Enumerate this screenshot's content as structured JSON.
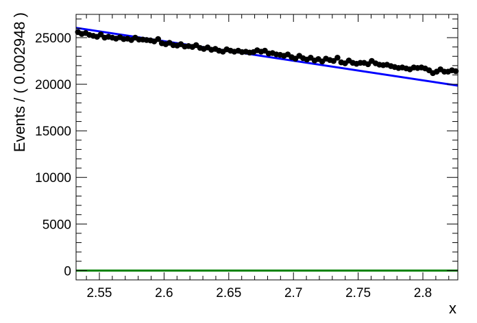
{
  "chart_data": {
    "type": "scatter",
    "title": "",
    "xlabel": "x",
    "ylabel": "Events / ( 0.002948 )",
    "xlim": [
      2.532,
      2.827
    ],
    "ylim": [
      -1000,
      27500
    ],
    "x_ticks": [
      2.55,
      2.6,
      2.65,
      2.7,
      2.75,
      2.8
    ],
    "x_tick_labels": [
      "2.55",
      "2.6",
      "2.65",
      "2.7",
      "2.75",
      "2.8"
    ],
    "y_ticks": [
      0,
      5000,
      10000,
      15000,
      20000,
      25000
    ],
    "y_tick_labels": [
      "0",
      "5000",
      "10000",
      "15000",
      "20000",
      "25000"
    ],
    "grid": false,
    "legend": "none",
    "series": [
      {
        "kind": "points",
        "color": "#000000",
        "x": [
          2.5335,
          2.5364,
          2.5394,
          2.5423,
          2.5453,
          2.5482,
          2.5511,
          2.5541,
          2.557,
          2.56,
          2.5629,
          2.5659,
          2.5688,
          2.5718,
          2.5747,
          2.5777,
          2.5806,
          2.5836,
          2.5865,
          2.5895,
          2.5924,
          2.5954,
          2.5983,
          2.6013,
          2.6042,
          2.6071,
          2.6101,
          2.613,
          2.616,
          2.6189,
          2.6219,
          2.6248,
          2.6278,
          2.6307,
          2.6337,
          2.6366,
          2.6396,
          2.6425,
          2.6455,
          2.6484,
          2.6514,
          2.6543,
          2.6573,
          2.6602,
          2.6632,
          2.6661,
          2.6691,
          2.672,
          2.675,
          2.6779,
          2.6809,
          2.6838,
          2.6868,
          2.6897,
          2.6927,
          2.6956,
          2.6986,
          2.7015,
          2.7045,
          2.7074,
          2.7104,
          2.7133,
          2.7163,
          2.7192,
          2.7222,
          2.7251,
          2.7281,
          2.731,
          2.734,
          2.7369,
          2.7399,
          2.7428,
          2.7458,
          2.7487,
          2.7517,
          2.7546,
          2.7576,
          2.7605,
          2.7635,
          2.7664,
          2.7694,
          2.7723,
          2.7753,
          2.7782,
          2.7812,
          2.7841,
          2.7871,
          2.79,
          2.793,
          2.7959,
          2.7989,
          2.8018,
          2.8048,
          2.8077,
          2.8107,
          2.8136,
          2.8166,
          2.8195,
          2.8225,
          2.8254
        ],
        "y": [
          25600,
          25400,
          25500,
          25300,
          25200,
          25100,
          25350,
          25000,
          25100,
          25000,
          24900,
          25050,
          24850,
          24900,
          24750,
          25000,
          24800,
          24800,
          24750,
          24700,
          24600,
          24850,
          24400,
          24300,
          24450,
          24200,
          24150,
          24300,
          24050,
          24100,
          24000,
          24200,
          23900,
          23800,
          23950,
          23700,
          23800,
          23600,
          23500,
          23750,
          23600,
          23500,
          23600,
          23450,
          23500,
          23400,
          23450,
          23650,
          23500,
          23600,
          23300,
          23350,
          23200,
          23150,
          23050,
          23200,
          22900,
          22750,
          23050,
          22800,
          22650,
          22850,
          22550,
          22700,
          22450,
          22750,
          22600,
          22500,
          22850,
          22350,
          22250,
          22550,
          22300,
          22200,
          22300,
          22300,
          22150,
          22500,
          22250,
          22100,
          22050,
          22100,
          21950,
          21850,
          21750,
          21800,
          21700,
          21600,
          21800,
          21750,
          21800,
          21700,
          21500,
          21200,
          21350,
          21600,
          21350,
          21350,
          21500,
          21400
        ]
      },
      {
        "kind": "line",
        "color": "#0000ff",
        "x": [
          2.532,
          2.827
        ],
        "y": [
          26050,
          19850
        ]
      },
      {
        "kind": "line",
        "color": "#008000",
        "x": [
          2.532,
          2.827
        ],
        "y": [
          0,
          0
        ]
      }
    ]
  }
}
